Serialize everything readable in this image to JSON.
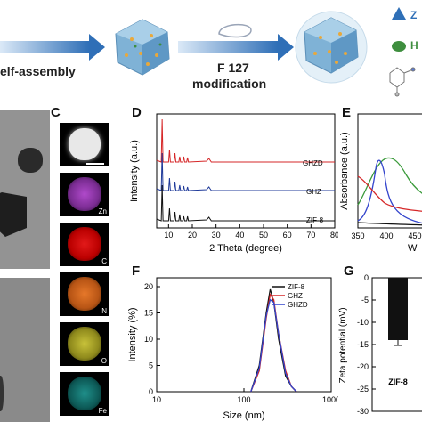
{
  "scheme": {
    "step1_label": "elf-assembly",
    "step2_label_line1": "F 127",
    "step2_label_line2": "modification",
    "legend_triangle_text": "Z",
    "legend_blob_text": "H"
  },
  "panels": {
    "C": {
      "label": "C",
      "elements": [
        "Zn",
        "C",
        "N",
        "O",
        "Fe"
      ]
    },
    "D": {
      "label": "D",
      "xlabel": "2 Theta (degree)",
      "ylabel": "Intensity (a.u.)",
      "xticks": [
        "10",
        "20",
        "30",
        "40",
        "50",
        "60",
        "70",
        "80"
      ],
      "series": [
        {
          "name": "GHZD",
          "color": "#d62728"
        },
        {
          "name": "GHZ",
          "color": "#1f3a9a"
        },
        {
          "name": "ZIF-8",
          "color": "#111111"
        }
      ]
    },
    "E": {
      "label": "E",
      "ylabel": "Absorbance (a.u.)",
      "xticks": [
        "350",
        "400",
        "450"
      ],
      "xlabel_partial": "W"
    },
    "F": {
      "label": "F",
      "xlabel": "Size (nm)",
      "ylabel": "Intensity (%)",
      "xticks": [
        "10",
        "100",
        "1000"
      ],
      "yticks": [
        "0",
        "5",
        "10",
        "15",
        "20"
      ],
      "legend": [
        "ZIF-8",
        "GHZ",
        "GHZD"
      ]
    },
    "G": {
      "label": "G",
      "ylabel": "Zeta potential (mV)",
      "yticks": [
        "0",
        "-5",
        "-10",
        "-15",
        "-20",
        "-25",
        "-30"
      ],
      "bar_label": "ZIF-8"
    }
  },
  "chart_data": [
    {
      "type": "line",
      "panel": "D",
      "xlabel": "2 Theta (degree)",
      "ylabel": "Intensity (a.u.)",
      "xlim": [
        5,
        80
      ],
      "series": [
        {
          "name": "GHZD",
          "peaks": [
            7.3,
            10.4,
            12.7,
            14.7,
            16.4,
            18.0
          ]
        },
        {
          "name": "GHZ",
          "peaks": [
            7.3,
            10.4,
            12.7,
            14.7,
            16.4,
            18.0
          ]
        },
        {
          "name": "ZIF-8",
          "peaks": [
            7.3,
            10.4,
            12.7,
            14.7,
            16.4,
            18.0
          ]
        }
      ]
    },
    {
      "type": "line",
      "panel": "F",
      "xlabel": "Size (nm)",
      "ylabel": "Intensity (%)",
      "xscale": "log",
      "xlim": [
        10,
        1000
      ],
      "ylim": [
        0,
        20
      ],
      "series": [
        {
          "name": "ZIF-8",
          "x": [
            120,
            150,
            180,
            200,
            220,
            250,
            300,
            350,
            400
          ],
          "y": [
            0,
            5,
            15,
            19.5,
            17,
            10,
            3,
            1,
            0
          ]
        },
        {
          "name": "GHZ",
          "x": [
            120,
            150,
            180,
            200,
            220,
            250,
            300,
            350,
            400
          ],
          "y": [
            0,
            4,
            14,
            18.5,
            17.5,
            11,
            4,
            1,
            0
          ]
        },
        {
          "name": "GHZD",
          "x": [
            120,
            150,
            180,
            200,
            220,
            250,
            300,
            350,
            400
          ],
          "y": [
            0,
            4.5,
            14.5,
            17.5,
            17,
            11,
            3.5,
            1,
            0
          ]
        }
      ]
    },
    {
      "type": "bar",
      "panel": "G",
      "ylabel": "Zeta potential (mV)",
      "ylim": [
        -30,
        0
      ],
      "categories": [
        "ZIF-8"
      ],
      "values": [
        -14
      ]
    }
  ]
}
